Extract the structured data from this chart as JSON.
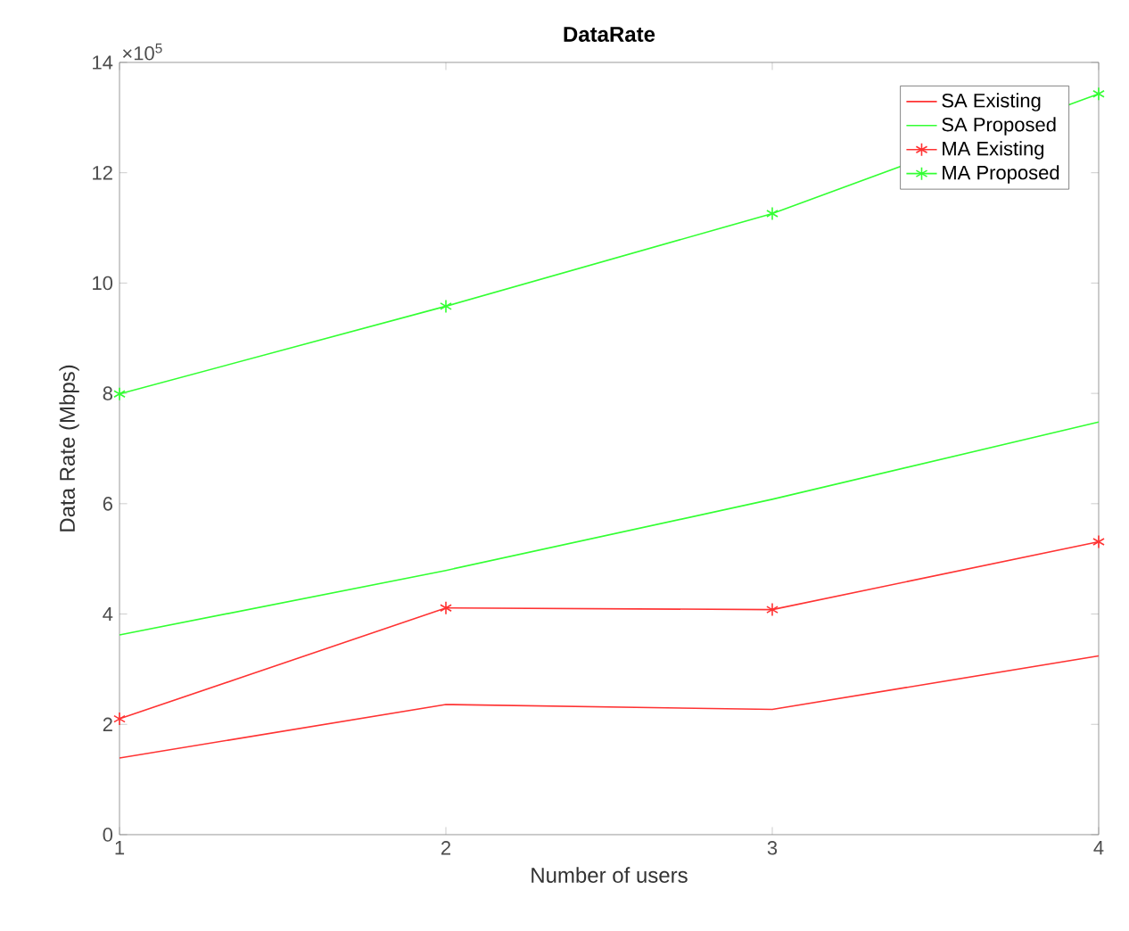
{
  "chart_data": {
    "type": "line",
    "title": "DataRate",
    "xlabel": "Number of users",
    "ylabel": "Data Rate (Mbps)",
    "annotations": [
      "×10$^{5}$"
    ],
    "x": [
      1,
      2,
      3,
      4
    ],
    "xlim": [
      1,
      4
    ],
    "xticks": [
      1,
      2,
      3,
      4
    ],
    "ylim": [
      0,
      14
    ],
    "yticks": [
      0,
      2,
      4,
      6,
      8,
      10,
      12,
      14
    ],
    "legend": "top right",
    "grid": false,
    "series": [
      {
        "name": "SA Existing",
        "color": "#ff3333",
        "marker": "none",
        "values": [
          1.39,
          2.36,
          2.27,
          3.24
        ]
      },
      {
        "name": "SA Proposed",
        "color": "#33ff33",
        "marker": "none",
        "values": [
          3.62,
          4.79,
          6.08,
          7.48
        ]
      },
      {
        "name": "MA Existing",
        "color": "#ff3333",
        "marker": "cross",
        "values": [
          2.1,
          4.11,
          4.08,
          5.31
        ]
      },
      {
        "name": "MA Proposed",
        "color": "#33ff33",
        "marker": "cross",
        "values": [
          7.99,
          9.58,
          11.26,
          13.43
        ]
      }
    ]
  }
}
